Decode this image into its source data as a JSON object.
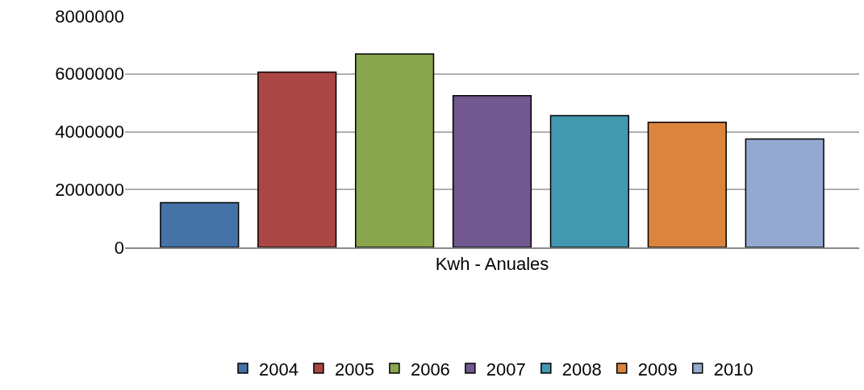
{
  "chart_data": {
    "type": "bar",
    "categories": [
      "Kwh - Anuales"
    ],
    "series": [
      {
        "name": "2004",
        "color": "#4572a7",
        "values": [
          1550000
        ]
      },
      {
        "name": "2005",
        "color": "#aa4643",
        "values": [
          6060000
        ]
      },
      {
        "name": "2006",
        "color": "#89a54e",
        "values": [
          6690000
        ]
      },
      {
        "name": "2007",
        "color": "#71588f",
        "values": [
          5250000
        ]
      },
      {
        "name": "2008",
        "color": "#4198af",
        "values": [
          4560000
        ]
      },
      {
        "name": "2009",
        "color": "#db843d",
        "values": [
          4330000
        ]
      },
      {
        "name": "2010",
        "color": "#93a9cf",
        "values": [
          3750000
        ]
      }
    ],
    "ylim": [
      0,
      8000000
    ],
    "yticks": [
      0,
      2000000,
      4000000,
      6000000,
      8000000
    ],
    "grid": "y",
    "legend": "bottom"
  }
}
